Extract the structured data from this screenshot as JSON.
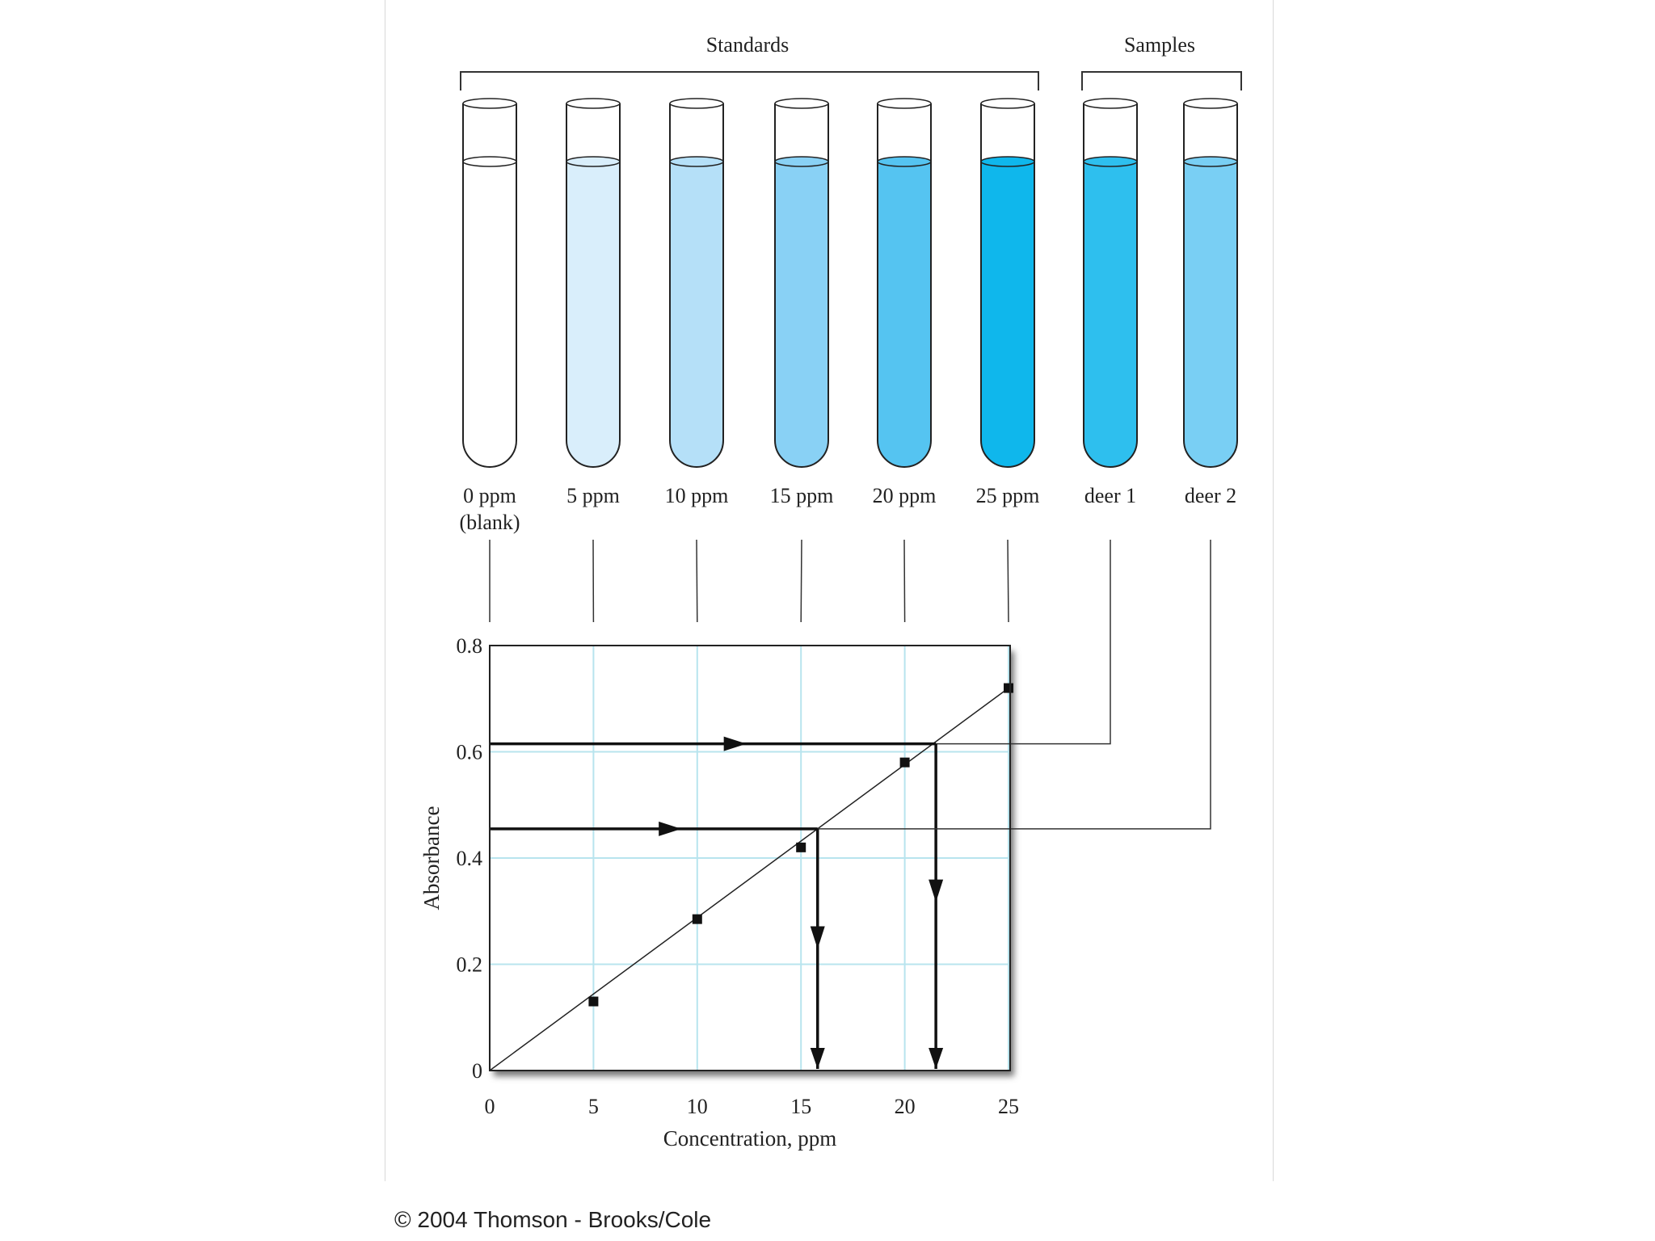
{
  "groups": {
    "standards_label": "Standards",
    "samples_label": "Samples"
  },
  "tubes": [
    {
      "label": "0 ppm",
      "sublabel": "(blank)",
      "color": "#ffffff"
    },
    {
      "label": "5 ppm",
      "sublabel": "",
      "color": "#d9eefb"
    },
    {
      "label": "10 ppm",
      "sublabel": "",
      "color": "#b5e0f8"
    },
    {
      "label": "15 ppm",
      "sublabel": "",
      "color": "#89d1f5"
    },
    {
      "label": "20 ppm",
      "sublabel": "",
      "color": "#55c4f1"
    },
    {
      "label": "25 ppm",
      "sublabel": "",
      "color": "#0fb7ec"
    },
    {
      "label": "deer 1",
      "sublabel": "",
      "color": "#2ebfee"
    },
    {
      "label": "deer 2",
      "sublabel": "",
      "color": "#79cff4"
    }
  ],
  "chart_data": {
    "type": "scatter",
    "xlabel": "Concentration, ppm",
    "ylabel": "Absorbance",
    "xlim": [
      0,
      25
    ],
    "ylim": [
      0,
      0.8
    ],
    "xticks": [
      "0",
      "5",
      "10",
      "15",
      "20",
      "25"
    ],
    "yticks": [
      "0",
      "0.2",
      "0.4",
      "0.6",
      "0.8"
    ],
    "grid": true,
    "series": [
      {
        "points": [
          [
            5,
            0.13
          ],
          [
            10,
            0.285
          ],
          [
            15,
            0.42
          ],
          [
            20,
            0.58
          ],
          [
            25,
            0.72
          ]
        ]
      }
    ],
    "fit_line": [
      [
        0,
        0
      ],
      [
        25,
        0.72
      ]
    ],
    "samples": [
      {
        "name": "deer 1",
        "absorbance": 0.615,
        "concentration": 21.5
      },
      {
        "name": "deer 2",
        "absorbance": 0.455,
        "concentration": 15.8
      }
    ]
  },
  "copyright": "© 2004 Thomson - Brooks/Cole"
}
